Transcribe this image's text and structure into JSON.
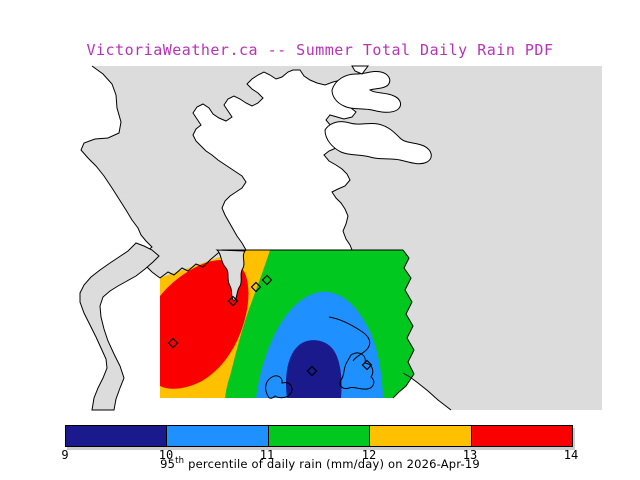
{
  "title": {
    "text": "VictoriaWeather.ca -- Summer Total Daily Rain PDF",
    "color": "#b832b8"
  },
  "map": {
    "land_color": "#dcdcdc",
    "water_color": "#ffffff",
    "coastline_color": "#000000",
    "region": "Greater Victoria / southern Vancouver Island",
    "station_marker": "open-diamond"
  },
  "caption": {
    "num": "95",
    "sup": "th",
    "rest": " percentile of daily rain (mm/day) on 2026-Apr-19"
  },
  "chart_data": {
    "type": "filled-contour-map",
    "title": "VictoriaWeather.ca -- Summer Total Daily Rain PDF",
    "variable": "95th percentile of daily rain",
    "units": "mm/day",
    "date": "2026-Apr-19",
    "colorbar": {
      "orientation": "horizontal",
      "position": "bottom",
      "ticks": [
        "9",
        "10",
        "11",
        "12",
        "13",
        "14"
      ],
      "bins": [
        {
          "range": "9-10",
          "color": "#1a1a8c"
        },
        {
          "range": "10-11",
          "color": "#1e90ff"
        },
        {
          "range": "11-12",
          "color": "#00c81e"
        },
        {
          "range": "12-13",
          "color": "#ffc000"
        },
        {
          "range": "13-14",
          "color": "#fa0000"
        }
      ],
      "label": "95th percentile of daily rain (mm/day) on 2026-Apr-19"
    },
    "field": {
      "minimum": {
        "value_range": "9-10 mm/day",
        "location": "south-central navy core of the field"
      },
      "maximum": {
        "value_range": "13-14 mm/day",
        "location": "western red core of the field"
      },
      "pattern": "values decrease eastward from a red/orange maximum in the west through green to a blue/navy minimum in the south-central area"
    },
    "stations": [
      [
        173,
        343
      ],
      [
        233,
        301
      ],
      [
        256,
        287
      ],
      [
        267,
        280
      ],
      [
        312,
        371
      ],
      [
        367,
        365
      ]
    ]
  }
}
